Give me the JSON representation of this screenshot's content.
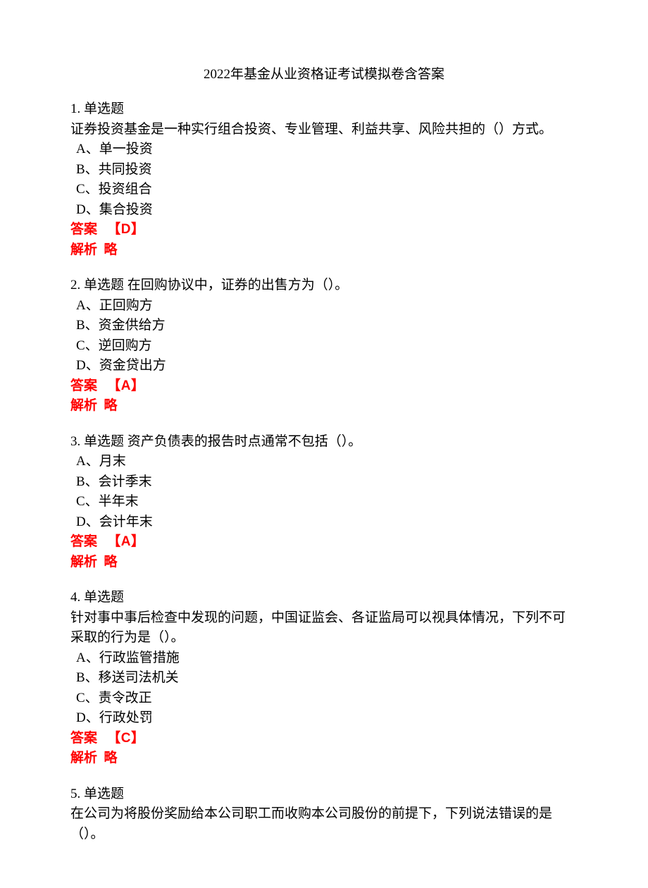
{
  "title": "2022年基金从业资格证考试模拟卷含答案",
  "colors": {
    "text": "#000000",
    "highlight": "#ff0000",
    "background": "#ffffff"
  },
  "typography": {
    "base_fontsize": 19,
    "title_fontsize": 19,
    "line_height": 1.5
  },
  "labels": {
    "answer": "答案",
    "explain": "解析",
    "explain_value": "略"
  },
  "questions": [
    {
      "number": "1.",
      "type": "单选题",
      "inline": false,
      "text": "证券投资基金是一种实行组合投资、专业管理、利益共享、风险共担的（）方式。",
      "options": [
        "A、单一投资",
        "B、共同投资",
        "C、投资组合",
        "D、集合投资"
      ],
      "answer": "【D】"
    },
    {
      "number": "2.",
      "type": "单选题",
      "inline": true,
      "text": "在回购协议中，证券的出售方为（）。",
      "options": [
        "A、正回购方",
        "B、资金供给方",
        "C、逆回购方",
        "D、资金贷出方"
      ],
      "answer": "【A】"
    },
    {
      "number": "3.",
      "type": "单选题",
      "inline": true,
      "text": "资产负债表的报告时点通常不包括（）。",
      "options": [
        "A、月末",
        "B、会计季末",
        "C、半年末",
        "D、会计年末"
      ],
      "answer": "【A】"
    },
    {
      "number": "4.",
      "type": "单选题",
      "inline": false,
      "text": "针对事中事后检查中发现的问题，中国证监会、各证监局可以视具体情况，下列不可采取的行为是（）。",
      "options": [
        "A、行政监管措施",
        "B、移送司法机关",
        "C、责令改正",
        "D、行政处罚"
      ],
      "answer": "【C】"
    },
    {
      "number": "5.",
      "type": "单选题",
      "inline": false,
      "text": "在公司为将股份奖励给本公司职工而收购本公司股份的前提下，下列说法错误的是（）。",
      "options": [],
      "answer": null
    }
  ]
}
